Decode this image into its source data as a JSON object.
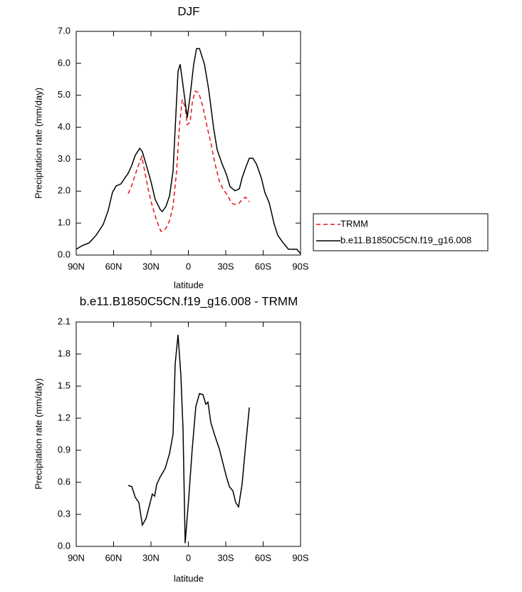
{
  "chart_data": [
    {
      "type": "line",
      "title": "DJF",
      "x_label": "latitude",
      "y_label": "Precipitation rate (mm/day)",
      "xlim": [
        90,
        -90
      ],
      "xticks": [
        {
          "value": 90,
          "label": "90N"
        },
        {
          "value": 60,
          "label": "60N"
        },
        {
          "value": 30,
          "label": "30N"
        },
        0,
        {
          "value": -30,
          "label": "30S"
        },
        {
          "value": -60,
          "label": "60S"
        },
        {
          "value": -90,
          "label": "90S"
        }
      ],
      "ylim": [
        0,
        7
      ],
      "yticks": [
        {
          "value": 0,
          "label": "0.0"
        },
        {
          "value": 1,
          "label": "1.0"
        },
        {
          "value": 2,
          "label": "2.0"
        },
        {
          "value": 3,
          "label": "3.0"
        },
        {
          "value": 4,
          "label": "4.0"
        },
        {
          "value": 5,
          "label": "5.0"
        },
        {
          "value": 6,
          "label": "6.0"
        },
        {
          "value": 7,
          "label": "7.0"
        }
      ],
      "series": [
        {
          "name": "TRMM",
          "color": "#e8141c",
          "dashed": true,
          "x": [
            48.3,
            45.4,
            42.6,
            39.7,
            37.4,
            35.1,
            32.3,
            28.9,
            25.4,
            22,
            18.6,
            15.1,
            12.3,
            9.4,
            7.1,
            4.9,
            2.6,
            0.9,
            -1.4,
            -3.1,
            -5.4,
            -8.3,
            -11.7,
            -14.6,
            -18,
            -21.4,
            -24.9,
            -27.7,
            -31.7,
            -34.6,
            -37.4,
            -40.9,
            -43.1,
            -46,
            -48.9
          ],
          "values": [
            1.92,
            2.18,
            2.52,
            2.85,
            3.08,
            2.63,
            2.07,
            1.52,
            1.07,
            0.74,
            0.8,
            1.07,
            1.52,
            2.63,
            4.08,
            4.86,
            4.64,
            4.08,
            4.15,
            4.75,
            5.13,
            5.08,
            4.64,
            4.08,
            3.52,
            2.85,
            2.3,
            2.07,
            1.85,
            1.63,
            1.58,
            1.63,
            1.74,
            1.81,
            1.67
          ]
        },
        {
          "name": "b.e11.B1850C5CN.f19_g16.008",
          "color": "#000000",
          "dashed": false,
          "x": [
            90,
            85.4,
            79.7,
            74,
            68.3,
            64.3,
            60.9,
            58,
            54,
            51,
            48.3,
            45.4,
            42.6,
            39,
            36.9,
            34,
            30,
            26.6,
            22.6,
            20.9,
            18,
            15.1,
            12.3,
            10,
            8.3,
            6.6,
            4.3,
            0.9,
            -1.4,
            -4.3,
            -6.6,
            -8.9,
            -12.9,
            -16.3,
            -20.3,
            -23.1,
            -27.1,
            -30.6,
            -33.4,
            -37.4,
            -40.9,
            -43.1,
            -46,
            -48.9,
            -51.7,
            -54.6,
            -58.6,
            -61.4,
            -64.9,
            -68.9,
            -71.7,
            -75.7,
            -80.3,
            -84.3,
            -87.1,
            -90
          ],
          "values": [
            0.18,
            0.29,
            0.38,
            0.62,
            0.96,
            1.4,
            1.96,
            2.16,
            2.23,
            2.41,
            2.56,
            2.81,
            3.12,
            3.34,
            3.23,
            2.85,
            2.3,
            1.74,
            1.43,
            1.36,
            1.52,
            1.85,
            2.63,
            4.41,
            5.75,
            5.97,
            5.31,
            4.3,
            4.97,
            5.97,
            6.46,
            6.46,
            5.97,
            5.19,
            3.97,
            3.3,
            2.85,
            2.52,
            2.14,
            2.01,
            2.07,
            2.41,
            2.74,
            3.03,
            3.03,
            2.85,
            2.41,
            1.96,
            1.63,
            0.96,
            0.62,
            0.4,
            0.18,
            0.18,
            0.18,
            0.04
          ]
        }
      ]
    },
    {
      "type": "line",
      "title": "b.e11.B1850C5CN.f19_g16.008 - TRMM",
      "x_label": "latitude",
      "y_label": "Precipitation rate (mm/day)",
      "color": "#000000",
      "xlim": [
        90,
        -90
      ],
      "xticks": [
        {
          "value": 90,
          "label": "90N"
        },
        {
          "value": 60,
          "label": "60N"
        },
        {
          "value": 30,
          "label": "30N"
        },
        0,
        {
          "value": -30,
          "label": "30S"
        },
        {
          "value": -60,
          "label": "60S"
        },
        {
          "value": -90,
          "label": "90S"
        }
      ],
      "ylim": [
        0,
        2.1
      ],
      "yticks": [
        {
          "value": 0,
          "label": "0.0"
        },
        0.3,
        0.6,
        0.9,
        1.2,
        1.5,
        1.8,
        2.1
      ],
      "x": [
        48.3,
        45.4,
        42.6,
        39.7,
        36.9,
        34,
        31.1,
        28.9,
        27.1,
        25.4,
        22.6,
        18.6,
        15.1,
        12.3,
        10.6,
        8.3,
        6,
        4.3,
        2.6,
        -0.3,
        -3.1,
        -6,
        -8.9,
        -11.7,
        -14,
        -15.7,
        -18,
        -21.4,
        -24.9,
        -27.7,
        -30.6,
        -32.9,
        -35.7,
        -38,
        -40.3,
        -43.1,
        -46,
        -48.9
      ],
      "values": [
        0.57,
        0.56,
        0.46,
        0.41,
        0.2,
        0.26,
        0.39,
        0.49,
        0.47,
        0.58,
        0.65,
        0.73,
        0.87,
        1.05,
        1.71,
        1.98,
        1.6,
        1.1,
        0.03,
        0.45,
        0.91,
        1.31,
        1.43,
        1.42,
        1.33,
        1.35,
        1.16,
        1.03,
        0.91,
        0.78,
        0.65,
        0.56,
        0.52,
        0.41,
        0.37,
        0.58,
        0.95,
        1.3
      ]
    }
  ]
}
